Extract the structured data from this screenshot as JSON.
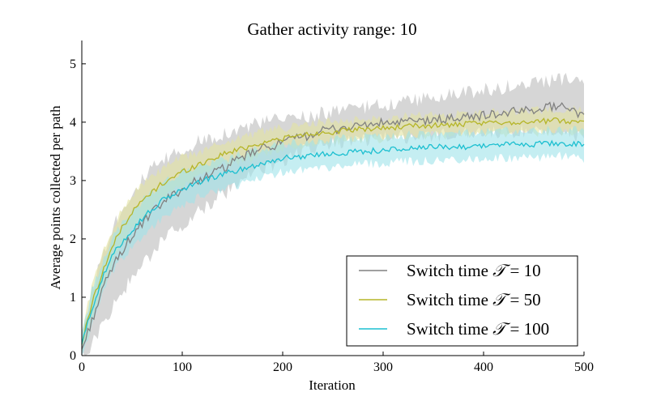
{
  "chart_data": {
    "type": "line",
    "title": "Gather activity range: 10",
    "xlabel": "Iteration",
    "ylabel": "Average points collected per path",
    "xlim": [
      0,
      500
    ],
    "ylim": [
      0,
      5.4
    ],
    "xticks": [
      "0",
      "100",
      "200",
      "300",
      "400",
      "500"
    ],
    "yticks": [
      "0",
      "1",
      "2",
      "3",
      "4",
      "5"
    ],
    "legend_position": "lower-right",
    "grid": false,
    "series": [
      {
        "name": "Switch time ᵌ9 = 10",
        "legend_prefix": "Switch time ",
        "legend_symbol": "𝒯",
        "legend_suffix": " = 10",
        "color": "#808080",
        "band_color": "#c8c8c8",
        "band_opacity": 0.75,
        "x": [
          0,
          10,
          20,
          30,
          40,
          50,
          60,
          70,
          80,
          90,
          100,
          120,
          140,
          160,
          180,
          200,
          220,
          240,
          260,
          280,
          300,
          320,
          340,
          360,
          380,
          400,
          420,
          440,
          460,
          480,
          500
        ],
        "y": [
          0.1,
          0.6,
          1.1,
          1.5,
          1.8,
          2.05,
          2.25,
          2.45,
          2.6,
          2.75,
          2.85,
          3.05,
          3.2,
          3.4,
          3.55,
          3.65,
          3.75,
          3.85,
          3.9,
          3.95,
          3.98,
          4.0,
          4.02,
          4.05,
          4.08,
          4.12,
          4.15,
          4.2,
          4.25,
          4.3,
          4.1
        ],
        "lower": [
          0.0,
          0.2,
          0.5,
          0.8,
          1.1,
          1.3,
          1.55,
          1.75,
          1.95,
          2.1,
          2.25,
          2.5,
          2.75,
          3.0,
          3.2,
          3.35,
          3.5,
          3.6,
          3.65,
          3.7,
          3.72,
          3.75,
          3.75,
          3.78,
          3.8,
          3.8,
          3.82,
          3.85,
          3.85,
          3.9,
          3.7
        ],
        "upper": [
          0.3,
          1.1,
          1.7,
          2.2,
          2.5,
          2.8,
          3.0,
          3.2,
          3.3,
          3.45,
          3.5,
          3.7,
          3.8,
          3.9,
          4.0,
          4.05,
          4.1,
          4.15,
          4.2,
          4.25,
          4.3,
          4.35,
          4.4,
          4.45,
          4.5,
          4.55,
          4.6,
          4.65,
          4.7,
          4.75,
          4.6
        ]
      },
      {
        "name": "Switch time ᵌ9 = 50",
        "legend_prefix": "Switch time ",
        "legend_symbol": "𝒯",
        "legend_suffix": " = 50",
        "color": "#b5b528",
        "band_color": "#e2e2a0",
        "band_opacity": 0.6,
        "x": [
          0,
          10,
          20,
          30,
          40,
          50,
          60,
          70,
          80,
          90,
          100,
          120,
          140,
          160,
          180,
          200,
          220,
          240,
          260,
          280,
          300,
          320,
          340,
          360,
          380,
          400,
          420,
          440,
          460,
          480,
          500
        ],
        "y": [
          0.2,
          0.9,
          1.4,
          1.85,
          2.2,
          2.45,
          2.65,
          2.8,
          2.95,
          3.05,
          3.15,
          3.3,
          3.45,
          3.55,
          3.65,
          3.72,
          3.78,
          3.82,
          3.85,
          3.88,
          3.9,
          3.92,
          3.94,
          3.95,
          3.96,
          3.98,
          4.0,
          4.0,
          4.02,
          4.03,
          4.0
        ],
        "lower": [
          0.0,
          0.6,
          1.1,
          1.55,
          1.9,
          2.15,
          2.35,
          2.55,
          2.7,
          2.8,
          2.9,
          3.1,
          3.25,
          3.35,
          3.45,
          3.55,
          3.6,
          3.65,
          3.68,
          3.7,
          3.72,
          3.74,
          3.76,
          3.78,
          3.78,
          3.8,
          3.8,
          3.82,
          3.82,
          3.83,
          3.8
        ],
        "upper": [
          0.4,
          1.2,
          1.7,
          2.15,
          2.5,
          2.75,
          2.95,
          3.05,
          3.2,
          3.3,
          3.4,
          3.5,
          3.65,
          3.75,
          3.85,
          3.9,
          3.95,
          4.0,
          4.02,
          4.05,
          4.08,
          4.1,
          4.12,
          4.13,
          4.14,
          4.16,
          4.18,
          4.19,
          4.2,
          4.22,
          4.2
        ]
      },
      {
        "name": "Switch time ᵌ9 = 100",
        "legend_prefix": "Switch time ",
        "legend_symbol": "𝒯",
        "legend_suffix": " = 100",
        "color": "#1cbfd0",
        "band_color": "#9fe3ea",
        "band_opacity": 0.6,
        "x": [
          0,
          10,
          20,
          30,
          40,
          50,
          60,
          70,
          80,
          90,
          100,
          120,
          140,
          160,
          180,
          200,
          220,
          240,
          260,
          280,
          300,
          320,
          340,
          360,
          380,
          400,
          420,
          440,
          460,
          480,
          500
        ],
        "y": [
          0.2,
          0.8,
          1.3,
          1.7,
          1.95,
          2.15,
          2.35,
          2.5,
          2.65,
          2.75,
          2.85,
          3.0,
          3.1,
          3.2,
          3.3,
          3.38,
          3.42,
          3.45,
          3.48,
          3.5,
          3.52,
          3.54,
          3.56,
          3.58,
          3.58,
          3.6,
          3.62,
          3.62,
          3.63,
          3.64,
          3.62
        ],
        "lower": [
          0.0,
          0.5,
          1.0,
          1.4,
          1.65,
          1.85,
          2.05,
          2.2,
          2.35,
          2.45,
          2.55,
          2.75,
          2.85,
          2.95,
          3.05,
          3.15,
          3.2,
          3.22,
          3.25,
          3.28,
          3.3,
          3.32,
          3.33,
          3.35,
          3.36,
          3.37,
          3.38,
          3.39,
          3.4,
          3.42,
          3.38
        ],
        "upper": [
          0.4,
          1.1,
          1.6,
          2.0,
          2.25,
          2.45,
          2.65,
          2.8,
          2.95,
          3.05,
          3.15,
          3.25,
          3.35,
          3.45,
          3.55,
          3.62,
          3.65,
          3.68,
          3.72,
          3.74,
          3.76,
          3.78,
          3.8,
          3.82,
          3.82,
          3.84,
          3.86,
          3.86,
          3.87,
          3.88,
          3.86
        ]
      }
    ]
  }
}
